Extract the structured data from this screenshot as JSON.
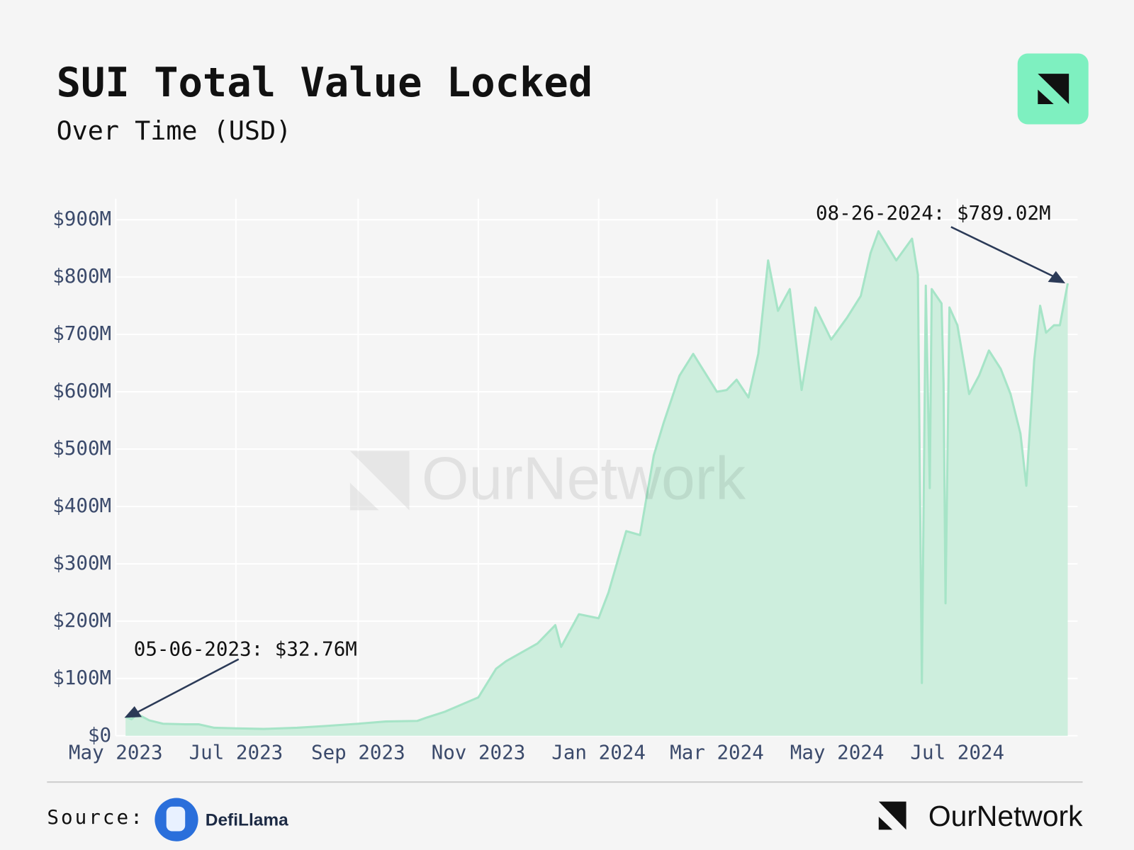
{
  "chart_data": {
    "type": "area",
    "title": "SUI Total Value Locked",
    "subtitle": "Over Time (USD)",
    "x": [
      "2023-05-06",
      "2023-05-09",
      "2023-05-12",
      "2023-05-18",
      "2023-05-25",
      "2023-06-05",
      "2023-06-12",
      "2023-06-20",
      "2023-07-01",
      "2023-07-15",
      "2023-08-01",
      "2023-08-15",
      "2023-09-01",
      "2023-09-15",
      "2023-10-01",
      "2023-10-06",
      "2023-10-15",
      "2023-11-01",
      "2023-11-10",
      "2023-11-15",
      "2023-12-01",
      "2023-12-10",
      "2023-12-13",
      "2023-12-22",
      "2024-01-01",
      "2024-01-06",
      "2024-01-15",
      "2024-01-22",
      "2024-01-29",
      "2024-02-03",
      "2024-02-11",
      "2024-02-18",
      "2024-03-01",
      "2024-03-06",
      "2024-03-11",
      "2024-03-17",
      "2024-03-22",
      "2024-03-27",
      "2024-04-01",
      "2024-04-07",
      "2024-04-13",
      "2024-04-20",
      "2024-04-28",
      "2024-05-06",
      "2024-05-13",
      "2024-05-18",
      "2024-05-22",
      "2024-05-31",
      "2024-06-08",
      "2024-06-11",
      "2024-06-13",
      "2024-06-15",
      "2024-06-17",
      "2024-06-18",
      "2024-06-23",
      "2024-06-24",
      "2024-06-25",
      "2024-06-27",
      "2024-07-01",
      "2024-07-07",
      "2024-07-12",
      "2024-07-17",
      "2024-07-23",
      "2024-07-28",
      "2024-08-02",
      "2024-08-05",
      "2024-08-09",
      "2024-08-12",
      "2024-08-15",
      "2024-08-19",
      "2024-08-22",
      "2024-08-26"
    ],
    "series": [
      {
        "name": "TVL",
        "color": "#a6e4c7",
        "fill": "#cdeedd",
        "values": [
          32.76,
          29,
          38,
          27,
          21,
          20,
          20,
          14,
          13,
          12,
          14,
          17,
          21,
          25,
          26,
          32,
          42,
          67,
          117,
          130,
          161,
          193,
          155,
          212,
          205,
          250,
          357,
          350,
          489,
          546,
          628,
          666,
          600,
          603,
          621,
          590,
          666,
          829,
          741,
          779,
          603,
          747,
          691,
          729,
          767,
          842,
          880,
          829,
          867,
          804,
          92,
          785,
          432,
          779,
          754,
          615,
          231,
          747,
          716,
          596,
          628,
          672,
          640,
          596,
          527,
          436,
          655,
          750,
          703,
          716,
          716,
          789.02
        ]
      }
    ],
    "xlim": [
      "2023-05-01",
      "2024-08-31"
    ],
    "xticks": [
      {
        "value": "2023-05-01",
        "label": "May 2023"
      },
      {
        "value": "2023-07-01",
        "label": "Jul 2023"
      },
      {
        "value": "2023-09-01",
        "label": "Sep 2023"
      },
      {
        "value": "2023-11-01",
        "label": "Nov 2023"
      },
      {
        "value": "2024-01-01",
        "label": "Jan 2024"
      },
      {
        "value": "2024-03-01",
        "label": "Mar 2024"
      },
      {
        "value": "2024-05-01",
        "label": "May 2024"
      },
      {
        "value": "2024-07-01",
        "label": "Jul 2024"
      }
    ],
    "ylim": [
      0,
      900
    ],
    "yticks": [
      {
        "value": 0,
        "label": "$0"
      },
      {
        "value": 100,
        "label": "$100M"
      },
      {
        "value": 200,
        "label": "$200M"
      },
      {
        "value": 300,
        "label": "$300M"
      },
      {
        "value": 400,
        "label": "$400M"
      },
      {
        "value": 500,
        "label": "$500M"
      },
      {
        "value": 600,
        "label": "$600M"
      },
      {
        "value": 700,
        "label": "$700M"
      },
      {
        "value": 800,
        "label": "$800M"
      },
      {
        "value": 900,
        "label": "$900M"
      }
    ],
    "grid": true,
    "annotations": [
      {
        "text": "05-06-2023: $32.76M"
      },
      {
        "text": "08-26-2024: $789.02M"
      }
    ],
    "watermark": "OurNetwork",
    "source_label": "Source:",
    "source": "DefiLlama",
    "brand": "OurNetwork"
  }
}
